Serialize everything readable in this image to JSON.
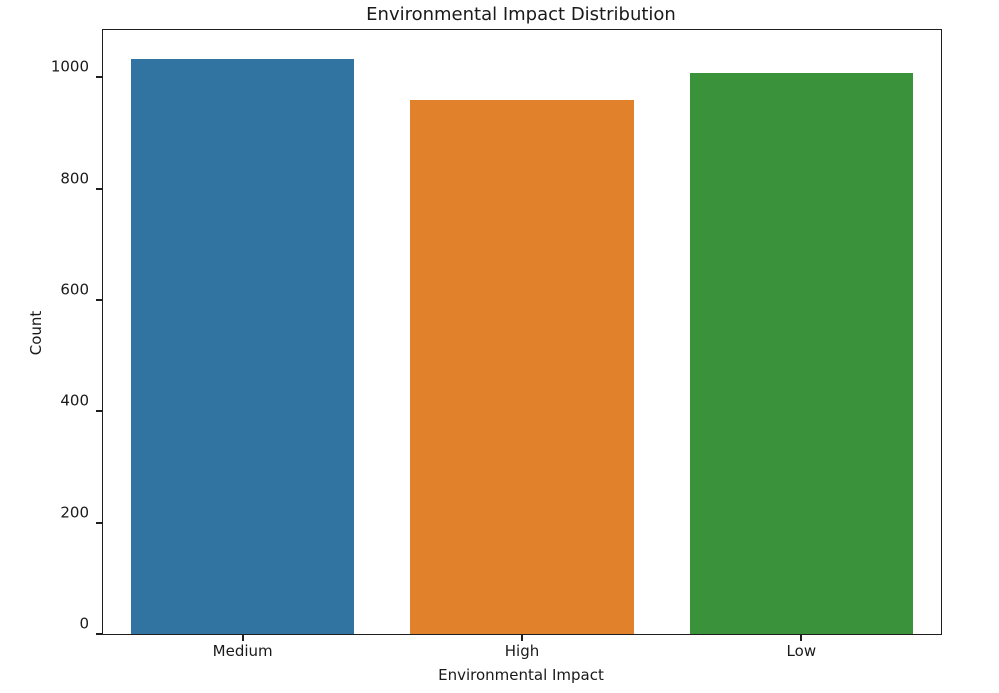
{
  "chart": {
    "title": "Environmental Impact Distribution",
    "xlabel": "Environmental Impact",
    "ylabel": "Count"
  },
  "chart_data": {
    "type": "bar",
    "title": "Environmental Impact Distribution",
    "xlabel": "Environmental Impact",
    "ylabel": "Count",
    "categories": [
      "Medium",
      "High",
      "Low"
    ],
    "values": [
      1033,
      959,
      1007
    ],
    "bar_colors": [
      "#3274a1",
      "#e1812c",
      "#3a923a"
    ],
    "ylim": [
      0,
      1085
    ],
    "yticks": [
      0,
      200,
      400,
      600,
      800,
      1000
    ],
    "bar_width_fraction": 0.8,
    "grid": false,
    "legend_position": "none"
  }
}
